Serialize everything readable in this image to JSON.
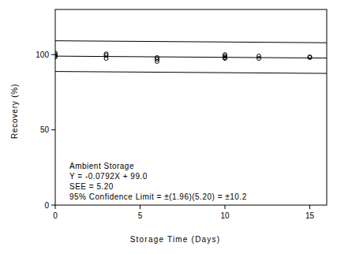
{
  "chart_data": {
    "type": "scatter",
    "x_label": "Storage Time (Days)",
    "y_label": "Recovery (%)",
    "annotations": [
      "Ambient Storage",
      "Y = -0.0792X + 99.0",
      "SEE = 5.20",
      "95% Confidence Limit = ±(1.96)(5.20) = ±10.2"
    ],
    "xlim": [
      0,
      16
    ],
    "xticks": [
      0,
      5,
      10,
      15
    ],
    "ylim": [
      0,
      130
    ],
    "yticks": [
      0,
      50,
      100
    ],
    "grid": false,
    "series": [
      {
        "type": "scatter",
        "marker": "open-circle",
        "color": "#000000",
        "x": [
          0,
          0,
          0,
          0,
          3,
          3,
          3,
          6,
          6,
          6,
          10,
          10,
          10,
          10,
          12,
          12,
          15,
          15
        ],
        "values": [
          101,
          100,
          99,
          98.5,
          100.5,
          99.5,
          97.5,
          98,
          97,
          95.5,
          100,
          99,
          98,
          97.5,
          99,
          97.5,
          98.5,
          98
        ]
      },
      {
        "type": "line",
        "line_style": "solid",
        "color": "#000000",
        "x": [
          0,
          16
        ],
        "values": [
          109.2,
          107.9
        ]
      },
      {
        "type": "line",
        "line_style": "solid",
        "color": "#000000",
        "x": [
          0,
          16
        ],
        "values": [
          99.0,
          97.7
        ]
      },
      {
        "type": "line",
        "line_style": "solid",
        "color": "#000000",
        "x": [
          0,
          16
        ],
        "values": [
          88.8,
          87.5
        ]
      }
    ]
  }
}
